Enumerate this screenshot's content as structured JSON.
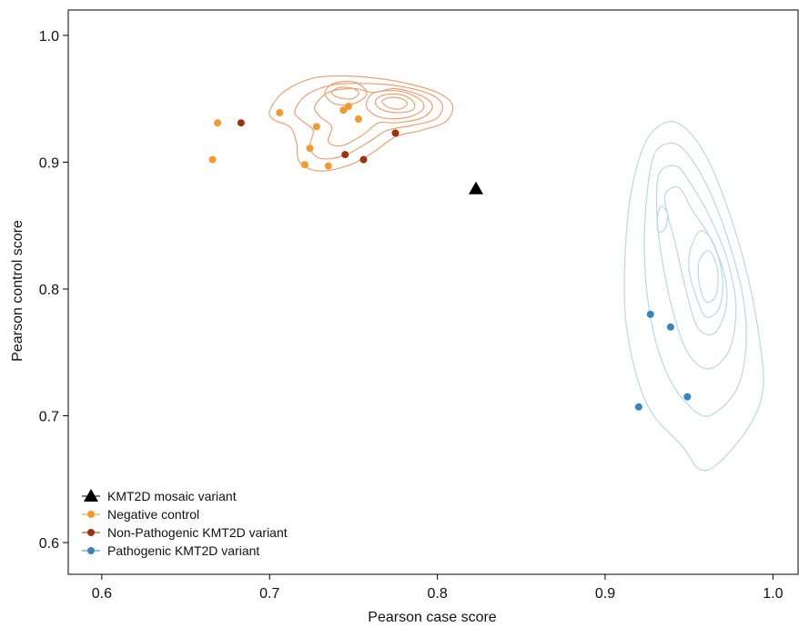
{
  "chart_data": {
    "type": "scatter",
    "title": "",
    "xlabel": "Pearson case score",
    "ylabel": "Pearson control score",
    "xlim": [
      0.58,
      1.015
    ],
    "ylim": [
      0.575,
      1.02
    ],
    "xticks": [
      0.6,
      0.7,
      0.8,
      0.9,
      1.0
    ],
    "xtick_labels": [
      "0.6",
      "0.7",
      "0.8",
      "0.9",
      "1.0"
    ],
    "yticks": [
      0.6,
      0.7,
      0.8,
      0.9,
      1.0
    ],
    "ytick_labels": [
      "0.6",
      "0.7",
      "0.8",
      "0.9",
      "1.0"
    ],
    "grid": false,
    "legend_position": "bottom-left",
    "series": [
      {
        "name": "KMT2D mosaic variant",
        "marker": "triangle",
        "color": "#000000",
        "points": [
          [
            0.823,
            0.879
          ]
        ]
      },
      {
        "name": "Negative control",
        "marker": "circle",
        "color": "#f39a2d",
        "points": [
          [
            0.669,
            0.931
          ],
          [
            0.666,
            0.902
          ],
          [
            0.706,
            0.939
          ],
          [
            0.728,
            0.928
          ],
          [
            0.724,
            0.911
          ],
          [
            0.721,
            0.898
          ],
          [
            0.735,
            0.897
          ],
          [
            0.744,
            0.941
          ],
          [
            0.747,
            0.944
          ],
          [
            0.753,
            0.934
          ]
        ]
      },
      {
        "name": "Non-Pathogenic KMT2D variant",
        "marker": "circle",
        "color": "#9e3309",
        "points": [
          [
            0.683,
            0.931
          ],
          [
            0.745,
            0.906
          ],
          [
            0.756,
            0.902
          ],
          [
            0.775,
            0.923
          ]
        ]
      },
      {
        "name": "Pathogenic KMT2D variant",
        "marker": "circle",
        "color": "#3a83c1",
        "points": [
          [
            0.927,
            0.78
          ],
          [
            0.939,
            0.77
          ],
          [
            0.949,
            0.715
          ],
          [
            0.92,
            0.707
          ]
        ]
      }
    ],
    "density_contours": [
      {
        "group": "Negative control",
        "color": "#f0a070",
        "levels": [
          [
            [
              0.7,
              0.94
            ],
            [
              0.708,
              0.955
            ],
            [
              0.725,
              0.966
            ],
            [
              0.745,
              0.968
            ],
            [
              0.765,
              0.966
            ],
            [
              0.782,
              0.962
            ],
            [
              0.8,
              0.955
            ],
            [
              0.809,
              0.945
            ],
            [
              0.805,
              0.932
            ],
            [
              0.79,
              0.925
            ],
            [
              0.775,
              0.92
            ],
            [
              0.762,
              0.908
            ],
            [
              0.748,
              0.898
            ],
            [
              0.73,
              0.893
            ],
            [
              0.718,
              0.9
            ],
            [
              0.716,
              0.916
            ],
            [
              0.712,
              0.928
            ],
            [
              0.703,
              0.933
            ]
          ],
          [
            [
              0.715,
              0.94
            ],
            [
              0.722,
              0.953
            ],
            [
              0.738,
              0.961
            ],
            [
              0.758,
              0.962
            ],
            [
              0.777,
              0.96
            ],
            [
              0.795,
              0.954
            ],
            [
              0.803,
              0.945
            ],
            [
              0.799,
              0.934
            ],
            [
              0.785,
              0.929
            ],
            [
              0.77,
              0.925
            ],
            [
              0.758,
              0.915
            ],
            [
              0.744,
              0.905
            ],
            [
              0.73,
              0.903
            ],
            [
              0.724,
              0.912
            ],
            [
              0.726,
              0.925
            ],
            [
              0.719,
              0.933
            ]
          ],
          [
            [
              0.727,
              0.944
            ],
            [
              0.735,
              0.955
            ],
            [
              0.75,
              0.958
            ],
            [
              0.762,
              0.955
            ],
            [
              0.775,
              0.958
            ],
            [
              0.791,
              0.952
            ],
            [
              0.797,
              0.944
            ],
            [
              0.791,
              0.935
            ],
            [
              0.776,
              0.931
            ],
            [
              0.765,
              0.931
            ],
            [
              0.755,
              0.921
            ],
            [
              0.743,
              0.913
            ],
            [
              0.735,
              0.916
            ],
            [
              0.737,
              0.928
            ],
            [
              0.73,
              0.936
            ]
          ],
          [
            [
              0.758,
              0.948
            ],
            [
              0.763,
              0.955
            ],
            [
              0.778,
              0.956
            ],
            [
              0.79,
              0.949
            ],
            [
              0.791,
              0.941
            ],
            [
              0.781,
              0.935
            ],
            [
              0.767,
              0.935
            ],
            [
              0.759,
              0.941
            ]
          ],
          [
            [
              0.763,
              0.948
            ],
            [
              0.768,
              0.953
            ],
            [
              0.779,
              0.953
            ],
            [
              0.786,
              0.947
            ],
            [
              0.785,
              0.941
            ],
            [
              0.775,
              0.939
            ],
            [
              0.766,
              0.942
            ]
          ],
          [
            [
              0.767,
              0.948
            ],
            [
              0.772,
              0.951
            ],
            [
              0.779,
              0.95
            ],
            [
              0.782,
              0.946
            ],
            [
              0.778,
              0.942
            ],
            [
              0.771,
              0.943
            ]
          ],
          [
            [
              0.737,
              0.955
            ],
            [
              0.742,
              0.959
            ],
            [
              0.75,
              0.958
            ],
            [
              0.753,
              0.954
            ],
            [
              0.749,
              0.95
            ],
            [
              0.741,
              0.951
            ]
          ],
          [
            [
              0.733,
              0.954
            ],
            [
              0.738,
              0.962
            ],
            [
              0.751,
              0.963
            ],
            [
              0.758,
              0.954
            ],
            [
              0.75,
              0.946
            ],
            [
              0.739,
              0.946
            ]
          ]
        ]
      },
      {
        "group": "Pathogenic KMT2D variant",
        "color": "#b9d8ea",
        "levels": [
          [
            [
              0.925,
              0.918
            ],
            [
              0.938,
              0.932
            ],
            [
              0.95,
              0.924
            ],
            [
              0.962,
              0.9
            ],
            [
              0.974,
              0.86
            ],
            [
              0.985,
              0.81
            ],
            [
              0.992,
              0.76
            ],
            [
              0.994,
              0.72
            ],
            [
              0.985,
              0.69
            ],
            [
              0.967,
              0.662
            ],
            [
              0.956,
              0.658
            ],
            [
              0.946,
              0.676
            ],
            [
              0.928,
              0.702
            ],
            [
              0.918,
              0.735
            ],
            [
              0.912,
              0.78
            ],
            [
              0.912,
              0.83
            ],
            [
              0.916,
              0.88
            ]
          ],
          [
            [
              0.929,
              0.905
            ],
            [
              0.94,
              0.915
            ],
            [
              0.95,
              0.905
            ],
            [
              0.962,
              0.878
            ],
            [
              0.973,
              0.84
            ],
            [
              0.982,
              0.795
            ],
            [
              0.984,
              0.755
            ],
            [
              0.978,
              0.72
            ],
            [
              0.962,
              0.7
            ],
            [
              0.95,
              0.708
            ],
            [
              0.938,
              0.73
            ],
            [
              0.929,
              0.765
            ],
            [
              0.924,
              0.81
            ],
            [
              0.924,
              0.86
            ]
          ],
          [
            [
              0.932,
              0.89
            ],
            [
              0.942,
              0.897
            ],
            [
              0.95,
              0.885
            ],
            [
              0.962,
              0.858
            ],
            [
              0.973,
              0.822
            ],
            [
              0.978,
              0.785
            ],
            [
              0.974,
              0.752
            ],
            [
              0.962,
              0.737
            ],
            [
              0.95,
              0.748
            ],
            [
              0.942,
              0.775
            ],
            [
              0.935,
              0.815
            ],
            [
              0.931,
              0.855
            ]
          ],
          [
            [
              0.936,
              0.875
            ],
            [
              0.944,
              0.88
            ],
            [
              0.952,
              0.862
            ],
            [
              0.962,
              0.842
            ],
            [
              0.971,
              0.812
            ],
            [
              0.972,
              0.785
            ],
            [
              0.965,
              0.765
            ],
            [
              0.955,
              0.77
            ],
            [
              0.948,
              0.8
            ],
            [
              0.942,
              0.835
            ],
            [
              0.937,
              0.86
            ]
          ],
          [
            [
              0.951,
              0.832
            ],
            [
              0.957,
              0.846
            ],
            [
              0.965,
              0.835
            ],
            [
              0.97,
              0.808
            ],
            [
              0.968,
              0.785
            ],
            [
              0.96,
              0.778
            ],
            [
              0.954,
              0.795
            ],
            [
              0.95,
              0.815
            ]
          ],
          [
            [
              0.956,
              0.822
            ],
            [
              0.962,
              0.83
            ],
            [
              0.967,
              0.815
            ],
            [
              0.966,
              0.795
            ],
            [
              0.96,
              0.79
            ],
            [
              0.956,
              0.805
            ]
          ],
          [
            [
              0.931,
              0.853
            ],
            [
              0.933,
              0.865
            ],
            [
              0.937,
              0.86
            ],
            [
              0.936,
              0.848
            ],
            [
              0.932,
              0.845
            ]
          ]
        ]
      }
    ]
  }
}
